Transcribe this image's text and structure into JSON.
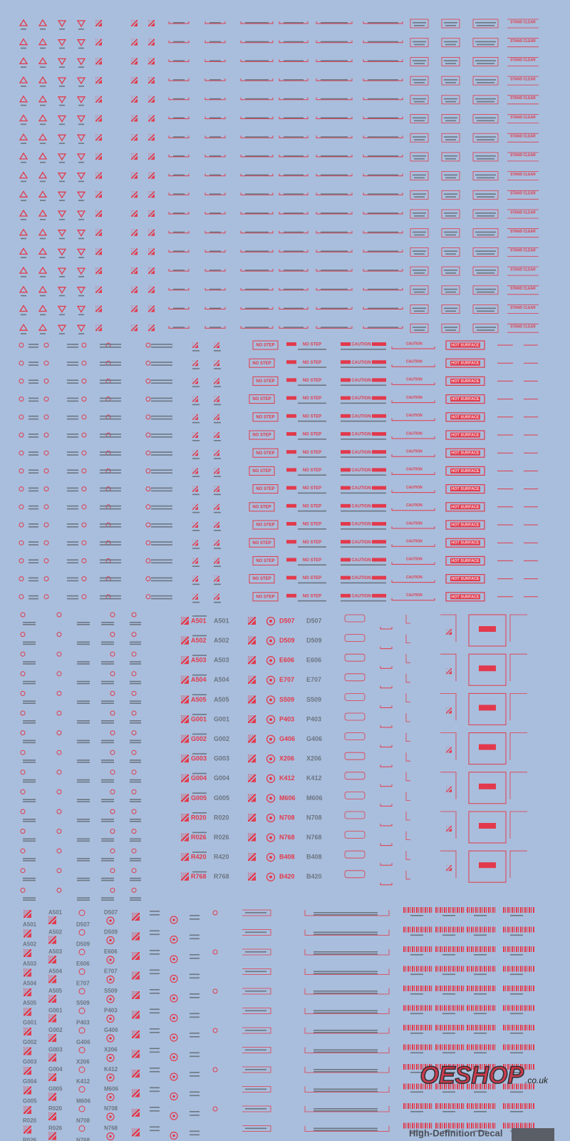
{
  "section1": {
    "label": "STAND CLEAR"
  },
  "section2": {
    "no_step": "NO STEP",
    "caution": "CAUTION",
    "hot_surface": "HOT SURFACE"
  },
  "section3": {
    "codes": [
      "A501",
      "A502",
      "A503",
      "A504",
      "A505",
      "G001",
      "G002",
      "G003",
      "G004",
      "G005",
      "R020",
      "R026",
      "R420",
      "R768"
    ],
    "codes2": [
      "D507",
      "D509",
      "E606",
      "E707",
      "S509",
      "P403",
      "G406",
      "X206",
      "K412",
      "M606",
      "N708",
      "N768",
      "B408",
      "B420"
    ]
  },
  "footer": {
    "brand": "High-Definition Decal"
  },
  "watermark": {
    "name": "OESHOP",
    "domain": ".co.uk"
  }
}
